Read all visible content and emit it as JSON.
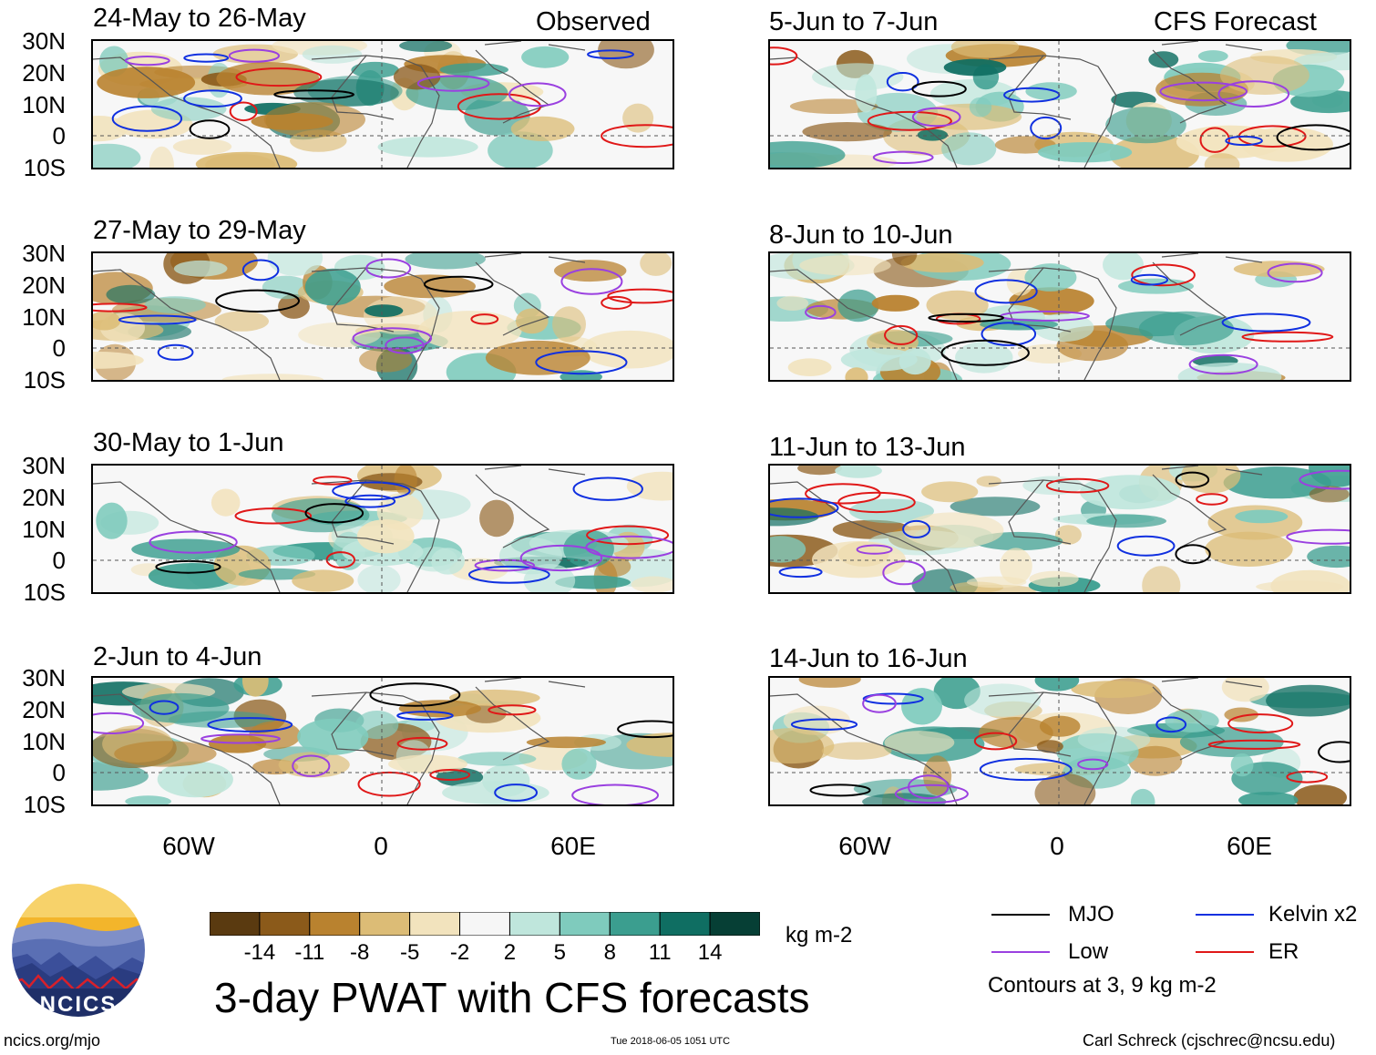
{
  "header": {
    "left_label": "Observed",
    "right_label": "CFS Forecast"
  },
  "panels_left": [
    {
      "title": "24-May to 26-May"
    },
    {
      "title": "27-May to 29-May"
    },
    {
      "title": "30-May to 1-Jun"
    },
    {
      "title": "2-Jun to 4-Jun"
    }
  ],
  "panels_right": [
    {
      "title": "5-Jun to 7-Jun"
    },
    {
      "title": "8-Jun to 10-Jun"
    },
    {
      "title": "11-Jun to 13-Jun"
    },
    {
      "title": "14-Jun to 16-Jun"
    }
  ],
  "axes": {
    "lat_labels": [
      "30N",
      "20N",
      "10N",
      "0",
      "10S"
    ],
    "lon_labels": [
      "60W",
      "0",
      "60E"
    ]
  },
  "colorbar": {
    "unit": "kg m-2",
    "tick_labels": [
      "-14",
      "-11",
      "-8",
      "-5",
      "-2",
      "2",
      "5",
      "8",
      "11",
      "14"
    ],
    "colors": [
      "#5a3a10",
      "#8b5a1a",
      "#b9822f",
      "#dcbc76",
      "#f2e3bd",
      "#f6f6f6",
      "#bfe6dc",
      "#7fcbbd",
      "#3b9e8f",
      "#0f6e62",
      "#063f35"
    ]
  },
  "legend": {
    "items": [
      {
        "label": "MJO",
        "color": "#000000"
      },
      {
        "label": "Kelvin x2",
        "color": "#1030e0"
      },
      {
        "label": "Low",
        "color": "#9a40e0"
      },
      {
        "label": "ER",
        "color": "#e01818"
      }
    ],
    "note": "Contours at 3, 9 kg m-2"
  },
  "title": "3-day PWAT with CFS forecasts",
  "footer": {
    "url": "ncics.org/mjo",
    "timestamp": "Tue 2018-06-05 1051 UTC",
    "credit": "Carl Schreck (cjschrec@ncsu.edu)",
    "logo_text": "NCICS"
  }
}
